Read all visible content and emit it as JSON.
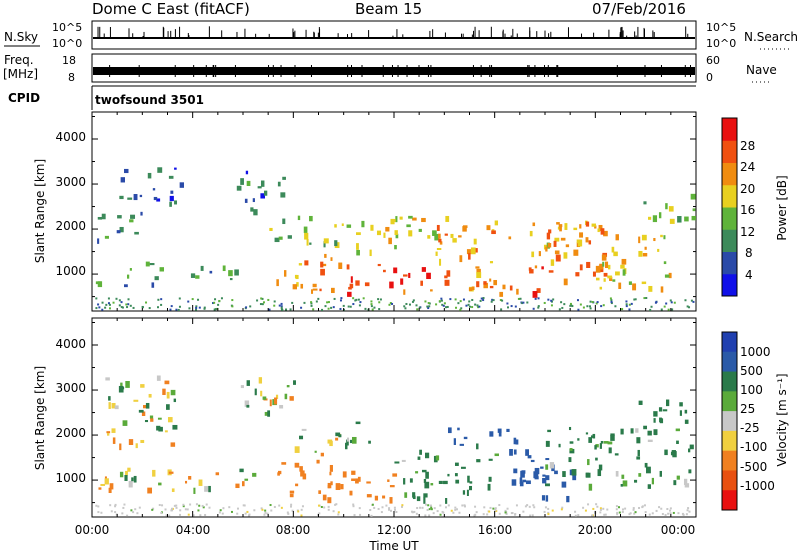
{
  "header": {
    "title": "Dome C East (fitACF)",
    "beam": "Beam 15",
    "date": "07/Feb/2016"
  },
  "status_panels": {
    "nsky_label": "N.Sky",
    "nsky_ticks": [
      "10^5",
      "10^0"
    ],
    "nsearch_label": "N.Search",
    "nsearch_ticks": [
      "10^5",
      "10^0"
    ],
    "freq_label_1": "Freq.",
    "freq_label_2": "[MHz]",
    "freq_ticks": [
      "18",
      "8"
    ],
    "nave_label": "Nave",
    "nave_ticks": [
      "60",
      "0"
    ],
    "cpid_label": "CPID",
    "cpid_value": "twofsound 3501"
  },
  "colors": {
    "power": [
      "#1010e8",
      "#2a4aa8",
      "#3c8a5a",
      "#5fb33a",
      "#e8d020",
      "#f08c10",
      "#f05010",
      "#e81010"
    ],
    "velocity": [
      "#2040b0",
      "#2a5aa8",
      "#2a7a4a",
      "#5aaa3a",
      "#c8c8c8",
      "#f0d040",
      "#f08020",
      "#e85010",
      "#e81010"
    ]
  },
  "chart_data": [
    {
      "type": "heatmap",
      "name": "power",
      "xlabel": "",
      "ylabel": "Slant Range [km]",
      "xlim": [
        0,
        24
      ],
      "ylim": [
        180,
        4600
      ],
      "yticks": [
        "1000",
        "2000",
        "3000",
        "4000"
      ],
      "colorbar_label": "Power [dB]",
      "colorbar_ticks": [
        "4",
        "8",
        "12",
        "16",
        "20",
        "24",
        "28"
      ],
      "colorbar_range": [
        0,
        32
      ],
      "echo_regions": [
        {
          "t0": 0.0,
          "t1": 2.5,
          "r0": 700,
          "r1": 1300,
          "value": 10
        },
        {
          "t0": 0.2,
          "t1": 2.0,
          "r0": 1700,
          "r1": 2400,
          "value": 8
        },
        {
          "t0": 1.0,
          "t1": 3.6,
          "r0": 2600,
          "r1": 3400,
          "value": 6
        },
        {
          "t0": 2.0,
          "t1": 6.2,
          "r0": 900,
          "r1": 1200,
          "value": 11
        },
        {
          "t0": 5.5,
          "t1": 7.6,
          "r0": 2400,
          "r1": 3300,
          "value": 8
        },
        {
          "t0": 7.0,
          "t1": 10.5,
          "r0": 1700,
          "r1": 2300,
          "value": 14
        },
        {
          "t0": 7.2,
          "t1": 10.0,
          "r0": 650,
          "r1": 1500,
          "value": 22
        },
        {
          "t0": 10.0,
          "t1": 13.5,
          "r0": 500,
          "r1": 1300,
          "value": 26
        },
        {
          "t0": 10.0,
          "t1": 15.0,
          "r0": 1500,
          "r1": 2300,
          "value": 18
        },
        {
          "t0": 13.5,
          "t1": 16.0,
          "r0": 700,
          "r1": 2200,
          "value": 22
        },
        {
          "t0": 16.0,
          "t1": 18.0,
          "r0": 500,
          "r1": 1400,
          "value": 26
        },
        {
          "t0": 16.0,
          "t1": 20.0,
          "r0": 1500,
          "r1": 2200,
          "value": 20
        },
        {
          "t0": 18.0,
          "t1": 21.0,
          "r0": 900,
          "r1": 2200,
          "value": 22
        },
        {
          "t0": 20.0,
          "t1": 23.2,
          "r0": 700,
          "r1": 1900,
          "value": 18
        },
        {
          "t0": 21.5,
          "t1": 24.0,
          "r0": 2200,
          "r1": 2800,
          "value": 14
        }
      ]
    },
    {
      "type": "heatmap",
      "name": "velocity",
      "xlabel": "Time UT",
      "ylabel": "Slant Range [km]",
      "xlim": [
        0,
        24
      ],
      "ylim": [
        180,
        4600
      ],
      "xticks": [
        "00:00",
        "04:00",
        "08:00",
        "12:00",
        "16:00",
        "20:00",
        "00:00"
      ],
      "yticks": [
        "1000",
        "2000",
        "3000",
        "4000"
      ],
      "colorbar_label": "Velocity [m s⁻¹]",
      "colorbar_ticks": [
        "1000",
        "500",
        "100",
        "25",
        "-25",
        "-100",
        "-500",
        "-1000"
      ],
      "echo_regions": [
        {
          "t0": 0.0,
          "t1": 6.5,
          "r0": 800,
          "r1": 1300,
          "value": 0
        },
        {
          "t0": 0.5,
          "t1": 3.5,
          "r0": 1800,
          "r1": 3400,
          "value": 0
        },
        {
          "t0": 5.5,
          "t1": 8.0,
          "r0": 2400,
          "r1": 3300,
          "value": 0
        },
        {
          "t0": 7.2,
          "t1": 12.0,
          "r0": 600,
          "r1": 1500,
          "value": -300
        },
        {
          "t0": 8.0,
          "t1": 11.0,
          "r0": 1600,
          "r1": 2300,
          "value": 50
        },
        {
          "t0": 12.0,
          "t1": 16.0,
          "r0": 600,
          "r1": 1700,
          "value": 200
        },
        {
          "t0": 14.0,
          "t1": 17.0,
          "r0": 1800,
          "r1": 2200,
          "value": 600
        },
        {
          "t0": 16.5,
          "t1": 19.5,
          "r0": 600,
          "r1": 1700,
          "value": 800
        },
        {
          "t0": 18.0,
          "t1": 24.0,
          "r0": 900,
          "r1": 2200,
          "value": 200
        },
        {
          "t0": 21.5,
          "t1": 24.0,
          "r0": 2200,
          "r1": 2800,
          "value": 300
        }
      ]
    }
  ]
}
